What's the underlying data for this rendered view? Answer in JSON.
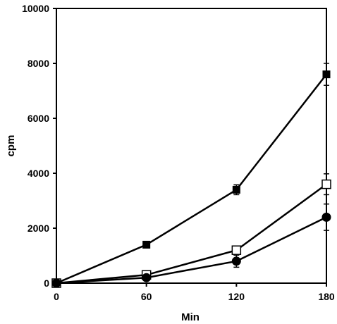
{
  "chart_data": {
    "type": "line",
    "title": "",
    "xlabel": "Min",
    "ylabel": "cpm",
    "xlim": [
      0,
      180
    ],
    "ylim": [
      0,
      10000
    ],
    "x_ticks": [
      0,
      60,
      120,
      180
    ],
    "y_ticks": [
      0,
      2000,
      4000,
      6000,
      8000,
      10000
    ],
    "grid": false,
    "legend": "none",
    "x": [
      0,
      60,
      120,
      180
    ],
    "series": [
      {
        "marker": "filled-square",
        "color": "#000000",
        "values": [
          0,
          1400,
          3400,
          7600
        ],
        "error": [
          0,
          70,
          180,
          400
        ]
      },
      {
        "marker": "open-square",
        "color": "#000000",
        "values": [
          0,
          300,
          1200,
          3600
        ],
        "error": [
          0,
          40,
          60,
          380
        ]
      },
      {
        "marker": "filled-circle",
        "color": "#000000",
        "values": [
          0,
          200,
          800,
          2400
        ],
        "error": [
          0,
          40,
          220,
          480
        ]
      }
    ]
  }
}
